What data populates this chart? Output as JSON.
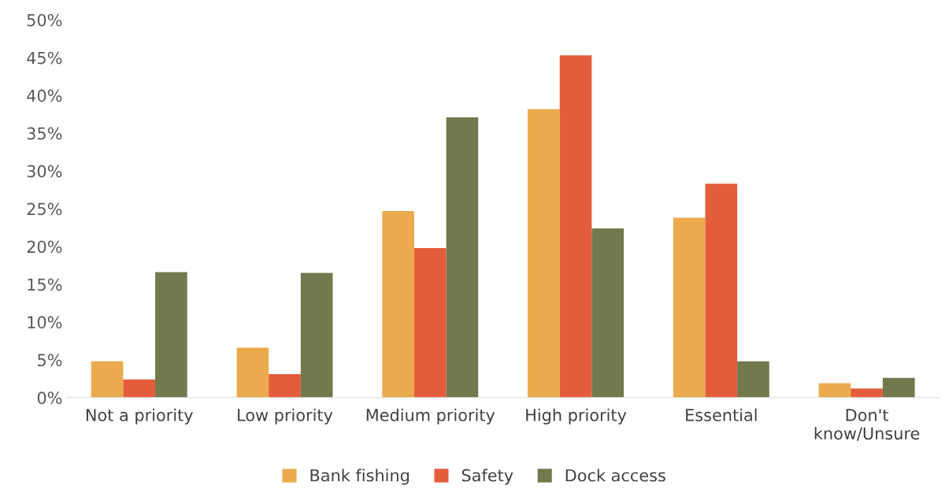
{
  "chart_data": {
    "type": "bar",
    "categories": [
      "Not a priority",
      "Low priority",
      "Medium priority",
      "High priority",
      "Essential",
      "Don't\nknow/Unsure"
    ],
    "series": [
      {
        "name": "Bank fishing",
        "color": "#eaaa4d",
        "values": [
          4.8,
          6.6,
          24.7,
          38.2,
          23.8,
          1.9
        ]
      },
      {
        "name": "Safety",
        "color": "#e45d3b",
        "values": [
          2.4,
          3.1,
          19.8,
          45.3,
          28.3,
          1.2
        ]
      },
      {
        "name": "Dock access",
        "color": "#72794d",
        "values": [
          16.6,
          16.5,
          37.1,
          22.4,
          4.8,
          2.6
        ]
      }
    ],
    "ylim": [
      0,
      50
    ],
    "yticks": [
      {
        "value": 0,
        "label": "0%"
      },
      {
        "value": 5,
        "label": "5%"
      },
      {
        "value": 10,
        "label": "10%"
      },
      {
        "value": 15,
        "label": "15%"
      },
      {
        "value": 20,
        "label": "20%"
      },
      {
        "value": 25,
        "label": "25%"
      },
      {
        "value": 30,
        "label": "30%"
      },
      {
        "value": 35,
        "label": "35%"
      },
      {
        "value": 40,
        "label": "40%"
      },
      {
        "value": 45,
        "label": "45%"
      },
      {
        "value": 50,
        "label": "50%"
      }
    ],
    "legend": "bottom"
  }
}
